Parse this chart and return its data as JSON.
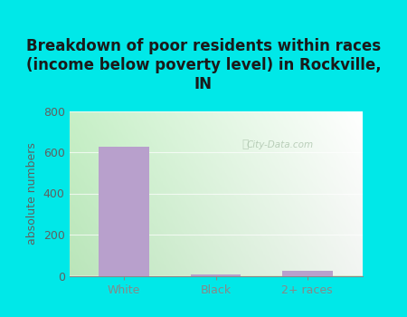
{
  "categories": [
    "White",
    "Black",
    "2+ races"
  ],
  "values": [
    625,
    5,
    22
  ],
  "bar_color": "#b8a0cc",
  "title": "Breakdown of poor residents within races\n(income below poverty level) in Rockville,\nIN",
  "ylabel": "absolute numbers",
  "ylim": [
    0,
    800
  ],
  "yticks": [
    0,
    200,
    400,
    600,
    800
  ],
  "bg_outer": "#00e8e8",
  "bg_plot_left": "#c8e8c0",
  "bg_plot_right": "#f8fff8",
  "grid_color": "#d0e8d0",
  "watermark": "City-Data.com",
  "title_fontsize": 12,
  "ylabel_fontsize": 9,
  "tick_fontsize": 9,
  "tick_color": "#606060",
  "title_color": "#1a1a1a"
}
